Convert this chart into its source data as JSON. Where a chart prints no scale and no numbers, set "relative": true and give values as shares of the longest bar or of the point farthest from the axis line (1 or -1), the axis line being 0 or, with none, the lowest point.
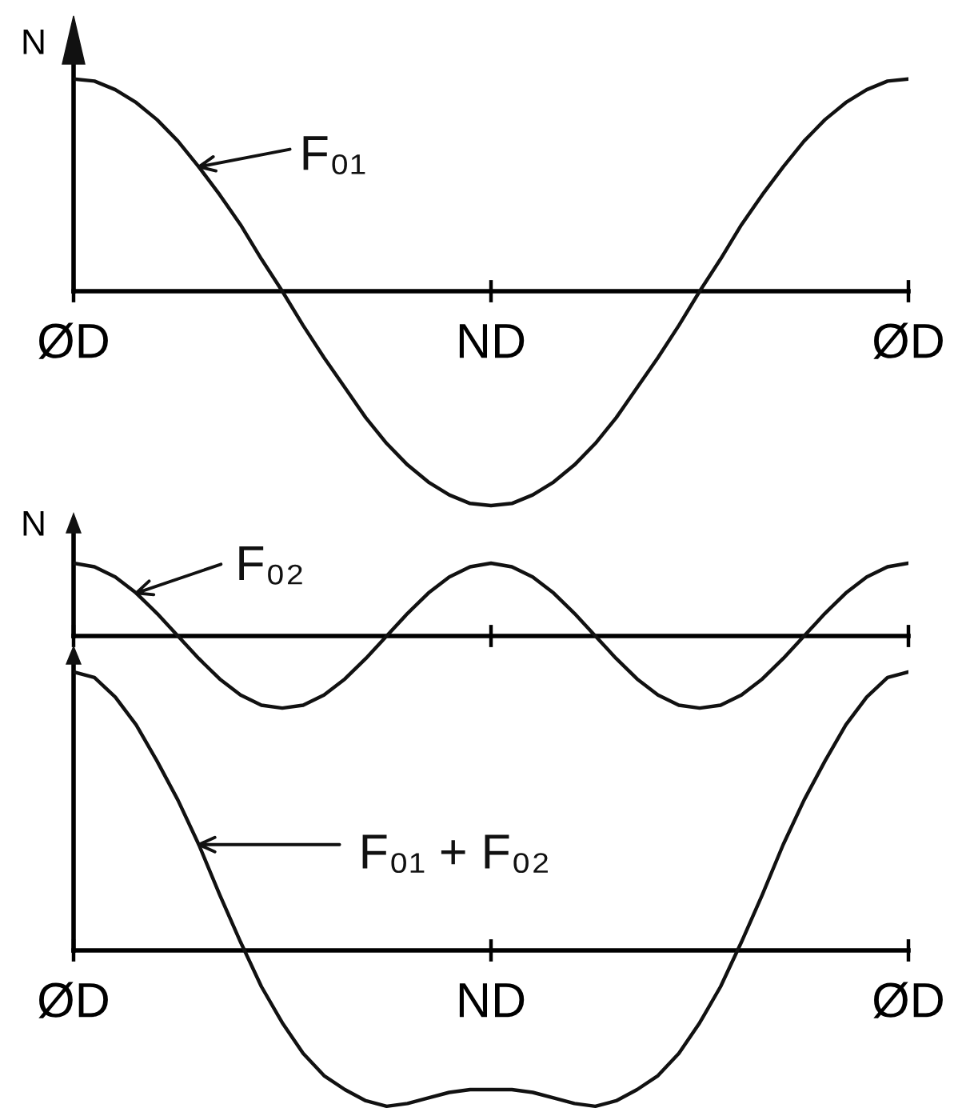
{
  "chart_data": [
    {
      "type": "line",
      "relative": true,
      "ylabel": "N",
      "line_style": "solid",
      "categories": [
        "ØD",
        null,
        null,
        null,
        null,
        null,
        null,
        null,
        null,
        null,
        null,
        null,
        null,
        null,
        null,
        null,
        null,
        null,
        null,
        null,
        "ND",
        null,
        null,
        null,
        null,
        null,
        null,
        null,
        null,
        null,
        null,
        null,
        null,
        null,
        null,
        null,
        null,
        null,
        null,
        null,
        "ØD"
      ],
      "series": [
        {
          "name": "F₀₁",
          "color": "#111111",
          "values": [
            0.99,
            0.98,
            0.94,
            0.88,
            0.8,
            0.7,
            0.58,
            0.45,
            0.31,
            0.15,
            0,
            -0.16,
            -0.31,
            -0.45,
            -0.59,
            -0.71,
            -0.81,
            -0.89,
            -0.95,
            -0.99,
            -1,
            -0.99,
            -0.95,
            -0.89,
            -0.81,
            -0.71,
            -0.59,
            -0.45,
            -0.31,
            -0.16,
            0,
            0.15,
            0.31,
            0.45,
            0.58,
            0.7,
            0.8,
            0.88,
            0.94,
            0.98,
            0.99
          ]
        }
      ]
    },
    {
      "type": "line",
      "relative": true,
      "ylabel": "N",
      "line_style": "solid",
      "categories": [
        null,
        null,
        null,
        null,
        null,
        null,
        null,
        null,
        null,
        null,
        null,
        null,
        null,
        null,
        null,
        null,
        null,
        null,
        null,
        null,
        null,
        null,
        null,
        null,
        null,
        null,
        null,
        null,
        null,
        null,
        null,
        null,
        null,
        null,
        null,
        null,
        null,
        null,
        null,
        null,
        null
      ],
      "series": [
        {
          "name": "F₀₂",
          "color": "#111111",
          "values": [
            1,
            0.95,
            0.81,
            0.59,
            0.31,
            0,
            -0.31,
            -0.59,
            -0.81,
            -0.95,
            -0.99,
            -0.95,
            -0.81,
            -0.59,
            -0.31,
            0,
            0.31,
            0.59,
            0.81,
            0.95,
            1,
            0.95,
            0.81,
            0.59,
            0.31,
            0,
            -0.31,
            -0.59,
            -0.81,
            -0.95,
            -0.99,
            -0.95,
            -0.81,
            -0.59,
            -0.31,
            0,
            0.31,
            0.59,
            0.81,
            0.95,
            1
          ]
        }
      ]
    },
    {
      "type": "line",
      "relative": true,
      "line_style": "solid",
      "categories": [
        "ØD",
        null,
        null,
        null,
        null,
        null,
        null,
        null,
        null,
        null,
        null,
        null,
        null,
        null,
        null,
        null,
        null,
        null,
        null,
        null,
        "ND",
        null,
        null,
        null,
        null,
        null,
        null,
        null,
        null,
        null,
        null,
        null,
        null,
        null,
        null,
        null,
        null,
        null,
        null,
        null,
        "ØD"
      ],
      "series": [
        {
          "name": "F₀₁ + F₀₂",
          "color": "#111111",
          "values": [
            1.0,
            0.98,
            0.91,
            0.81,
            0.68,
            0.54,
            0.38,
            0.2,
            0.03,
            -0.13,
            -0.26,
            -0.37,
            -0.45,
            -0.5,
            -0.54,
            -0.56,
            -0.55,
            -0.53,
            -0.51,
            -0.5,
            -0.5,
            -0.5,
            -0.51,
            -0.53,
            -0.55,
            -0.56,
            -0.54,
            -0.5,
            -0.45,
            -0.37,
            -0.26,
            -0.13,
            0.03,
            0.2,
            0.38,
            0.54,
            0.68,
            0.81,
            0.91,
            0.98,
            1.0
          ]
        }
      ]
    }
  ]
}
